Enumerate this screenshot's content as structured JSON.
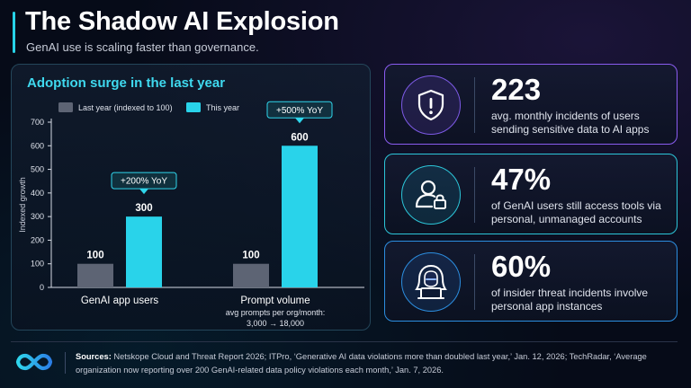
{
  "header": {
    "title": "The Shadow AI Explosion",
    "subtitle": "GenAI use is scaling faster than governance."
  },
  "chart_data": {
    "type": "bar",
    "title": "Adoption surge in the last year",
    "ylabel": "Indexed growth",
    "ylim": [
      0,
      700
    ],
    "yticks": [
      0,
      100,
      200,
      300,
      400,
      500,
      600,
      700
    ],
    "grid": false,
    "legend_position": "top",
    "categories": [
      "GenAI app users",
      "Prompt volume"
    ],
    "category_notes": [
      "",
      "avg prompts per org/month:\n3,000 → 18,000"
    ],
    "series": [
      {
        "name": "Last year (indexed to 100)",
        "color": "#5d6474",
        "values": [
          100,
          100
        ],
        "labels": [
          "100",
          "100"
        ]
      },
      {
        "name": "This year",
        "color": "#29d3ea",
        "values": [
          300,
          600
        ],
        "labels": [
          "300",
          "600"
        ]
      }
    ],
    "annotations": [
      "+200% YoY",
      "+500% YoY"
    ]
  },
  "stats": [
    {
      "value": "223",
      "description": "avg. monthly incidents of users sending sensitive data to AI apps",
      "icon": "shield-alert-icon",
      "accent": "#8a5cf0"
    },
    {
      "value": "47%",
      "description": "of GenAI users still access tools via personal, unmanaged accounts",
      "icon": "user-lock-icon",
      "accent": "#2cc6d9"
    },
    {
      "value": "60%",
      "description": "of insider threat incidents involve personal app instances",
      "icon": "hooded-hacker-icon",
      "accent": "#2c8ee0"
    }
  ],
  "footer": {
    "sources_label": "Sources:",
    "sources_text": "Netskope Cloud and Threat Report 2026; ITPro, ‘Generative AI data violations more than doubled last year,’ Jan. 12, 2026; TechRadar, ‘Average organization now reporting over 200 GenAI-related data policy violations each month,’ Jan. 7, 2026.",
    "logo_icon": "infinity-logo-icon"
  }
}
